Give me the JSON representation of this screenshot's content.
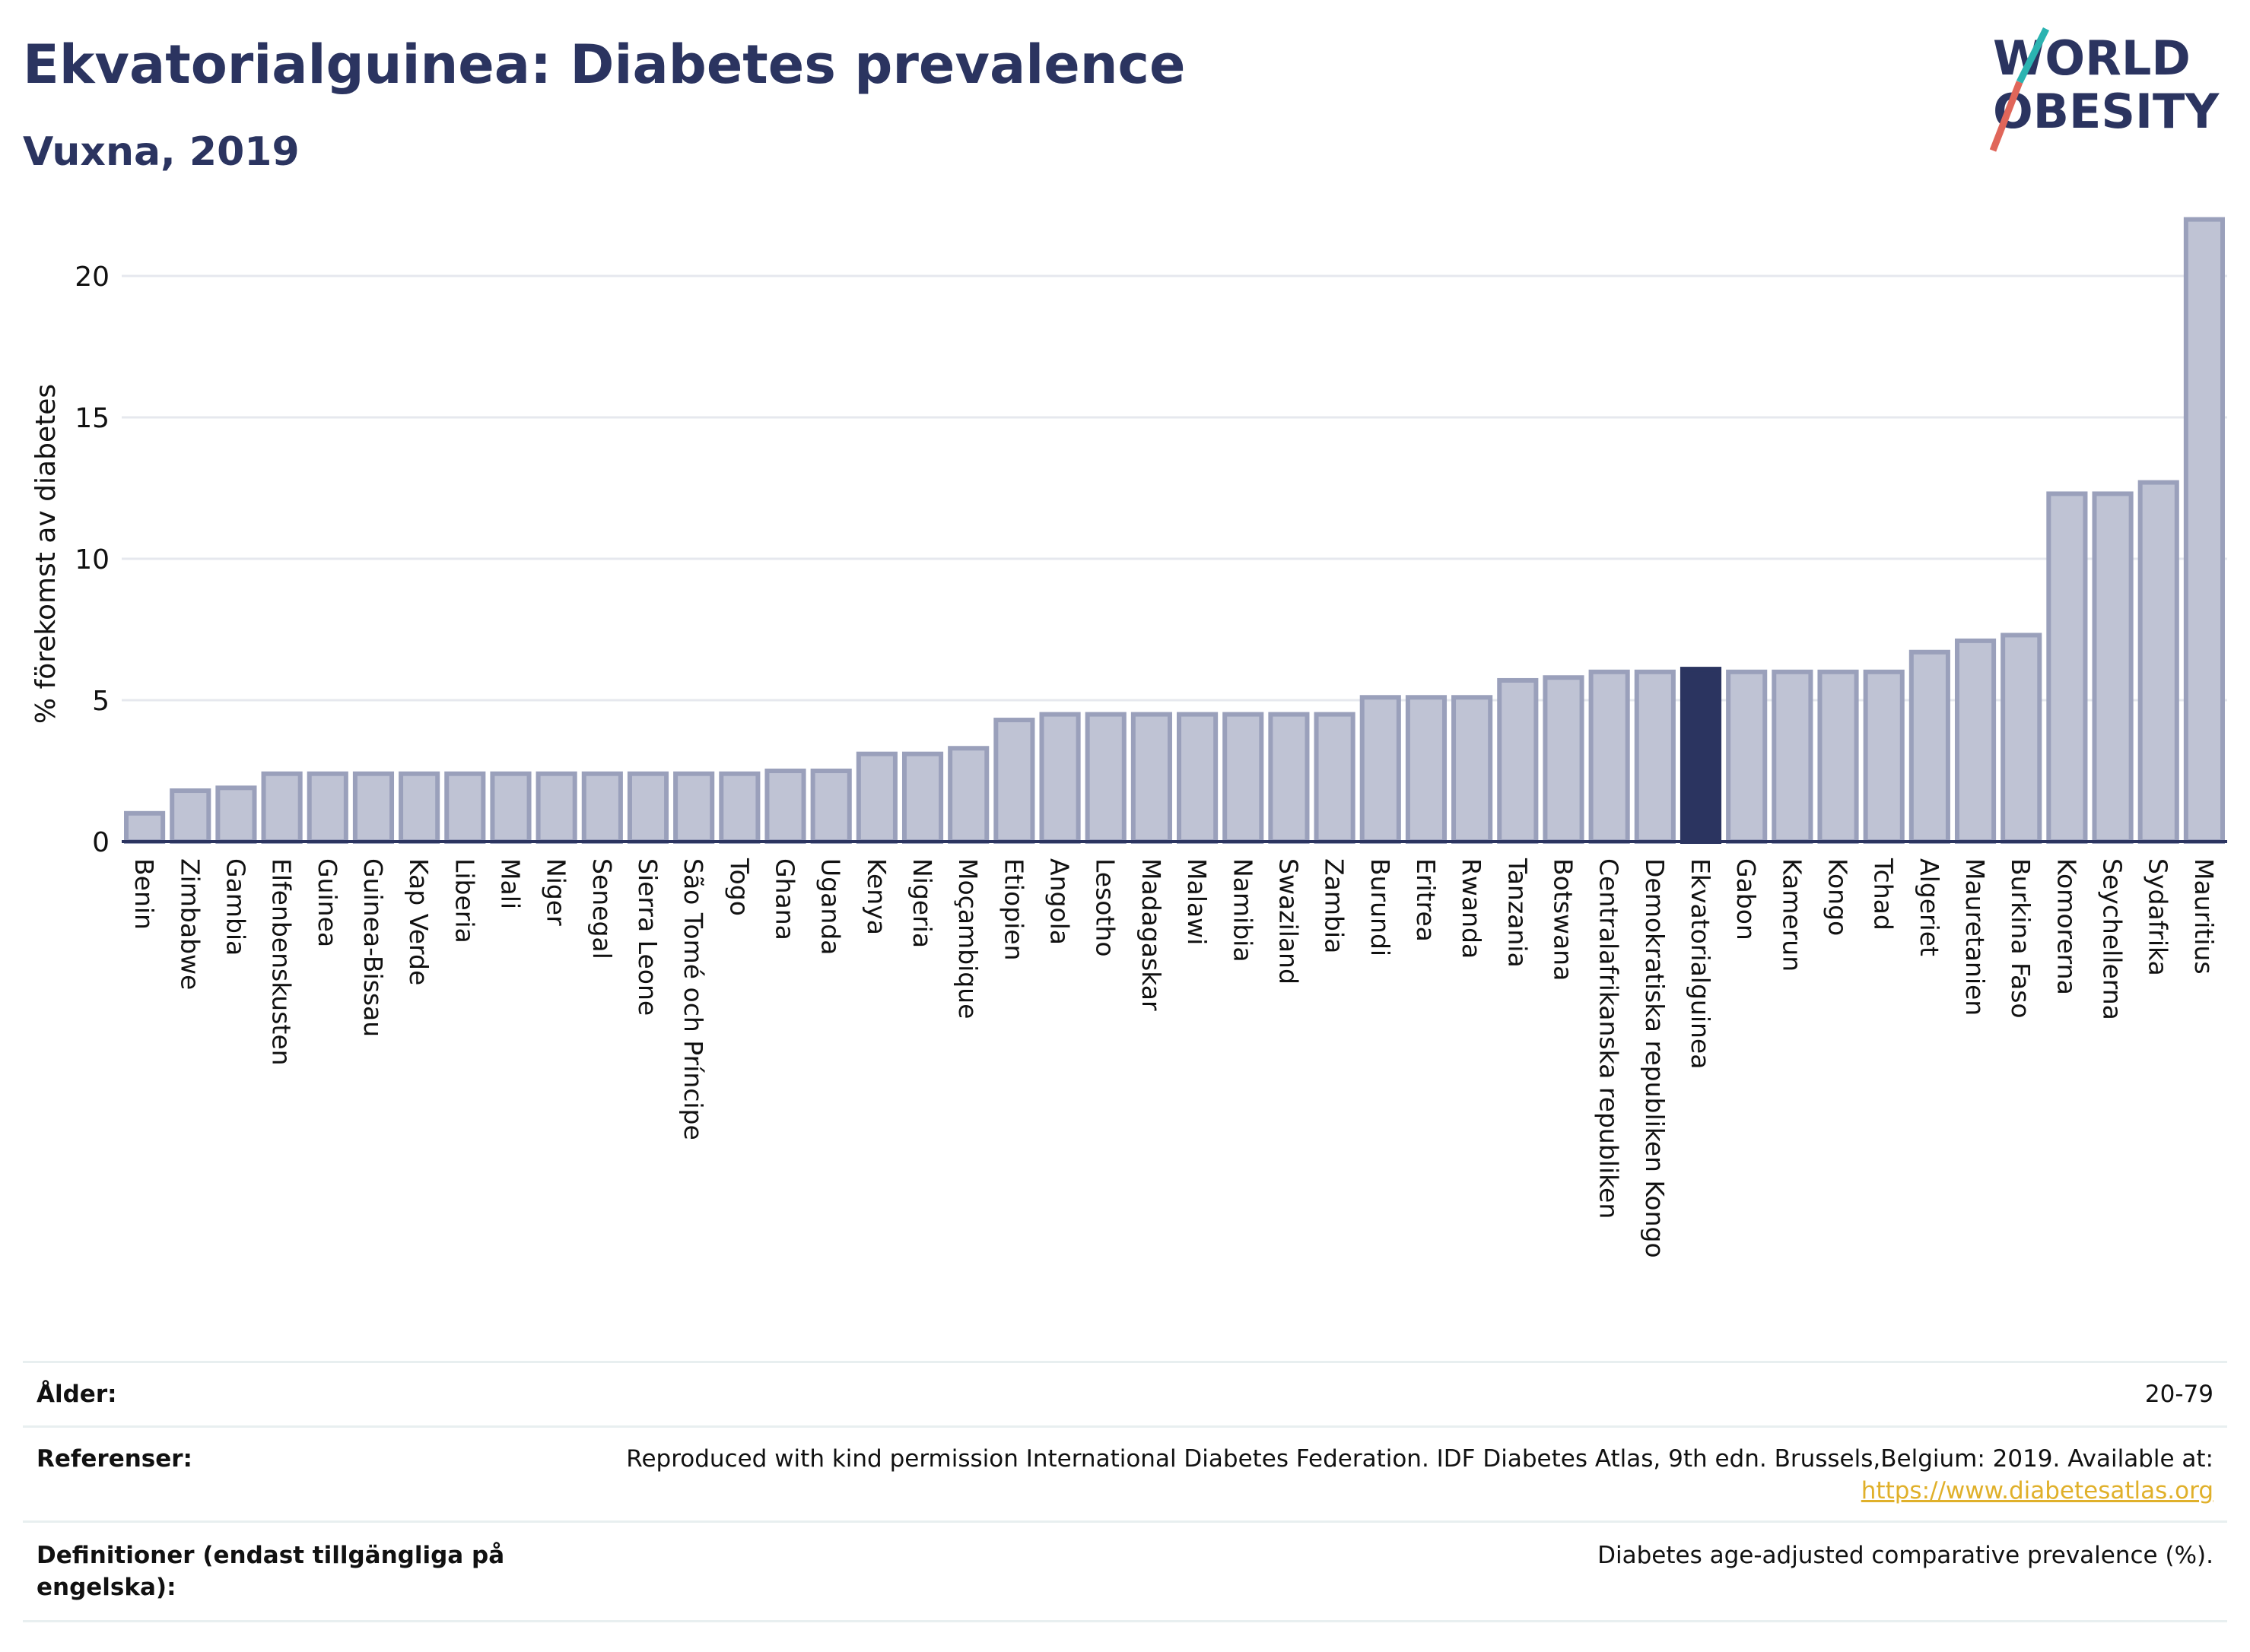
{
  "title": "Ekvatorialguinea: Diabetes prevalence",
  "subtitle": "Vuxna, 2019",
  "logo": {
    "line1": "WORLD",
    "line2": "OBESITY",
    "accent_colors": [
      "#2bb3b1",
      "#e0665a"
    ]
  },
  "colors": {
    "highlight": "#2b3460",
    "bar_fill": "#bfc3d4",
    "bar_stroke": "#9aa0bb",
    "title": "#2b3460"
  },
  "chart_data": {
    "type": "bar",
    "ylabel": "% förekomst av diabetes",
    "ylim": [
      0,
      22.5
    ],
    "yticks": [
      0,
      5,
      10,
      15,
      20
    ],
    "grid": true,
    "highlight": "Ekvatorialguinea",
    "categories": [
      "Benin",
      "Zimbabwe",
      "Gambia",
      "Elfenbenskusten",
      "Guinea",
      "Guinea-Bissau",
      "Kap Verde",
      "Liberia",
      "Mali",
      "Niger",
      "Senegal",
      "Sierra Leone",
      "São Tomé och Príncipe",
      "Togo",
      "Ghana",
      "Uganda",
      "Kenya",
      "Nigeria",
      "Moçambique",
      "Etiopien",
      "Angola",
      "Lesotho",
      "Madagaskar",
      "Malawi",
      "Namibia",
      "Swaziland",
      "Zambia",
      "Burundi",
      "Eritrea",
      "Rwanda",
      "Tanzania",
      "Botswana",
      "Centralafrikanska republiken",
      "Demokratiska republiken Kongo",
      "Ekvatorialguinea",
      "Gabon",
      "Kamerun",
      "Kongo",
      "Tchad",
      "Algeriet",
      "Mauretanien",
      "Burkina Faso",
      "Komorerna",
      "Seychellerna",
      "Sydafrika",
      "Mauritius"
    ],
    "values": [
      1.0,
      1.8,
      1.9,
      2.4,
      2.4,
      2.4,
      2.4,
      2.4,
      2.4,
      2.4,
      2.4,
      2.4,
      2.4,
      2.4,
      2.5,
      2.5,
      3.1,
      3.1,
      3.3,
      4.3,
      4.5,
      4.5,
      4.5,
      4.5,
      4.5,
      4.5,
      4.5,
      5.1,
      5.1,
      5.1,
      5.7,
      5.8,
      6.0,
      6.0,
      6.1,
      6.0,
      6.0,
      6.0,
      6.0,
      6.7,
      7.1,
      7.3,
      12.3,
      12.3,
      12.7,
      22.0
    ]
  },
  "footer": {
    "age_label": "Ålder:",
    "age_value": "20-79",
    "refs_label": "Referenser:",
    "refs_text": "Reproduced with kind permission International Diabetes Federation. IDF Diabetes Atlas, 9th edn. Brussels,Belgium: 2019. Available at:",
    "refs_link": "https://www.diabetesatlas.org",
    "defs_label_1": "Definitioner (endast tillgängliga på",
    "defs_label_2": "engelska):",
    "defs_value": "Diabetes age-adjusted comparative prevalence (%)."
  }
}
